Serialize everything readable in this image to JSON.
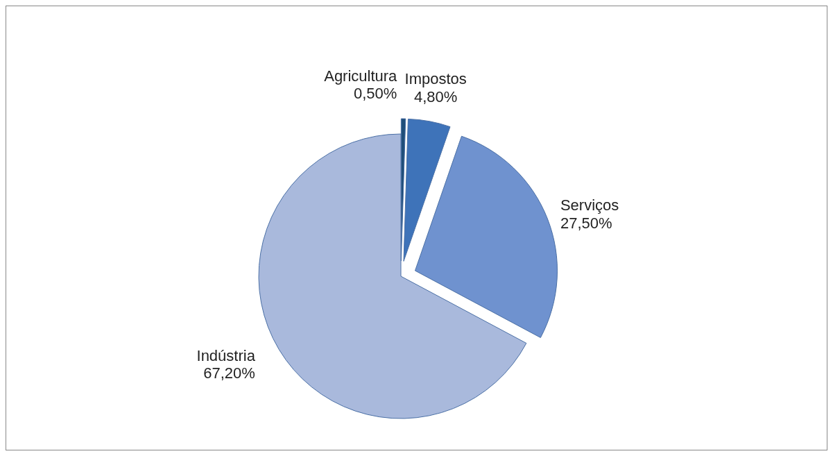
{
  "chart_data": {
    "type": "pie",
    "categories": [
      "Agricultura",
      "Impostos",
      "Serviços",
      "Indústria"
    ],
    "values": [
      0.5,
      4.8,
      27.5,
      67.2
    ],
    "colors": [
      "#1f4e79",
      "#3e73b9",
      "#6f92cf",
      "#a9b9dc"
    ],
    "value_labels": [
      "0,50%",
      "4,80%",
      "27,50%",
      "67,20%"
    ]
  }
}
